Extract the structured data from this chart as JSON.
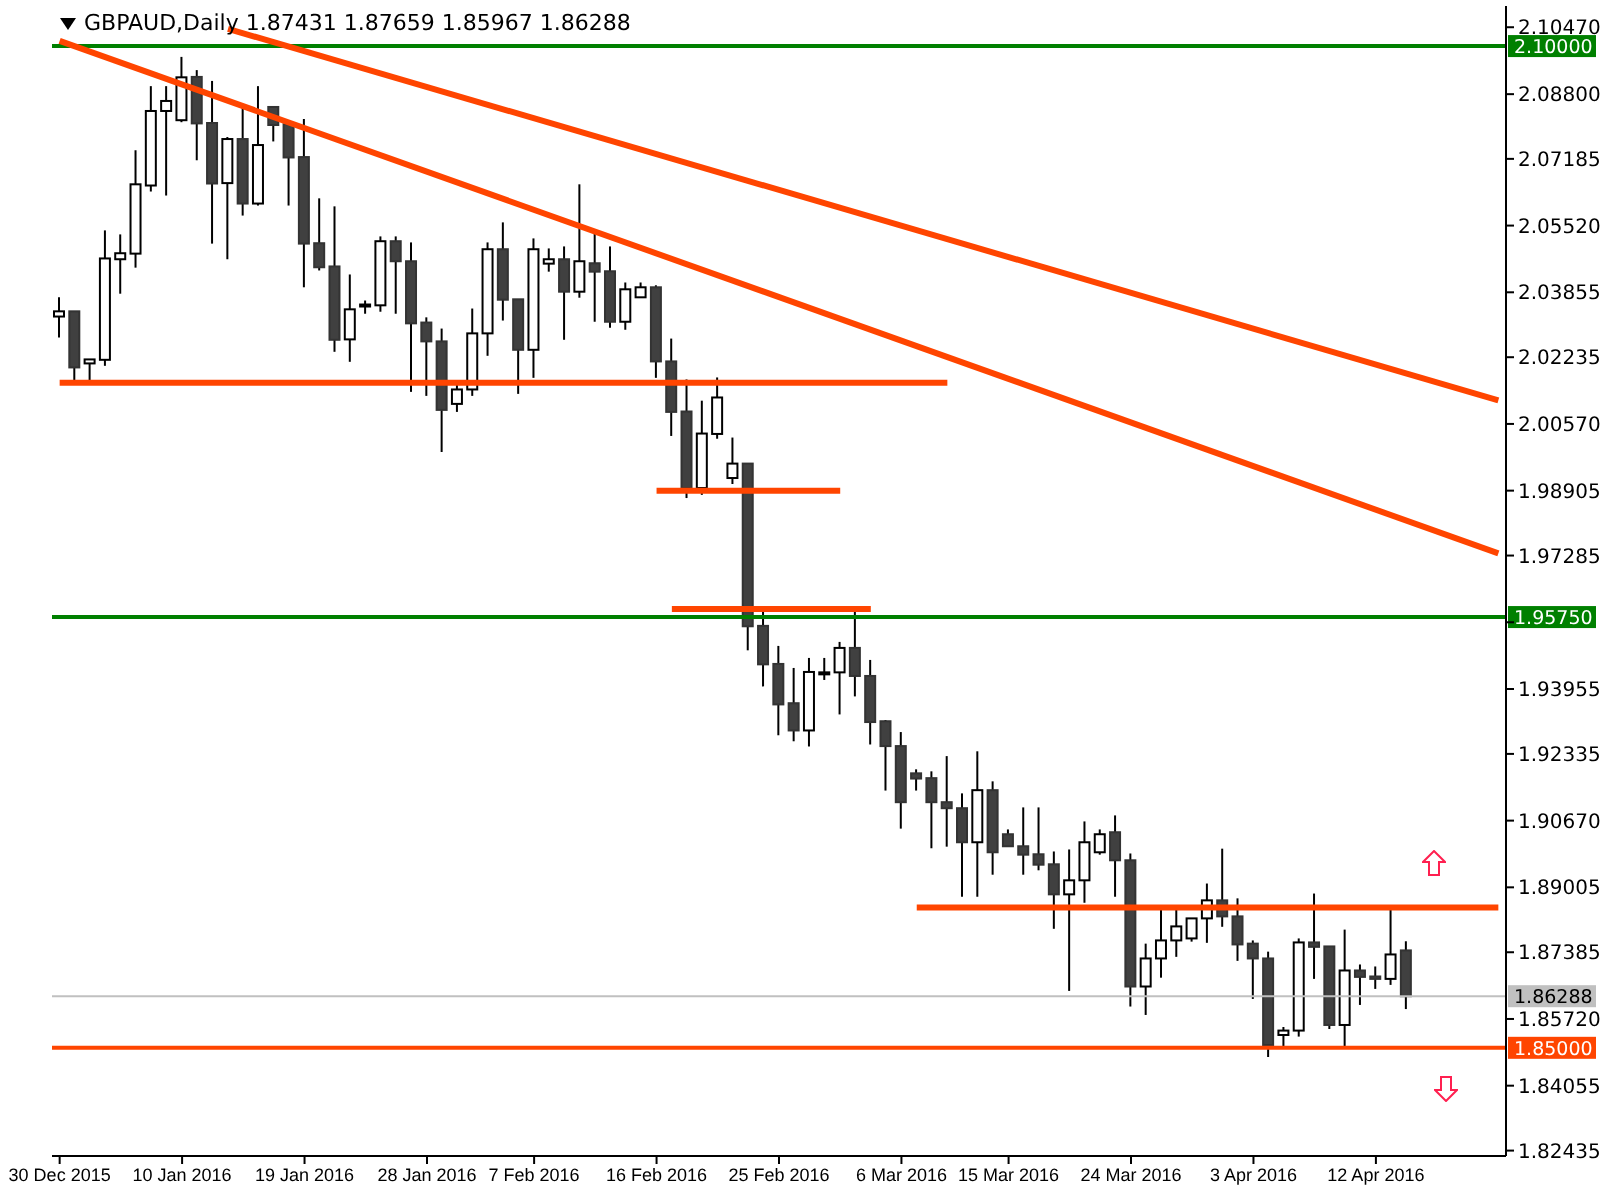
{
  "chart_data": {
    "type": "candlestick",
    "title": "GBPAUD,Daily  1.87431 1.87659 1.85967 1.86288",
    "categories": [
      "30 Dec 2015",
      null,
      null,
      null,
      null,
      null,
      null,
      null,
      "10 Jan 2016",
      null,
      null,
      null,
      null,
      null,
      null,
      null,
      "19 Jan 2016",
      null,
      null,
      null,
      null,
      null,
      null,
      null,
      "28 Jan 2016",
      null,
      null,
      null,
      null,
      null,
      null,
      "7 Feb 2016",
      null,
      null,
      null,
      null,
      null,
      null,
      null,
      "16 Feb 2016",
      null,
      null,
      null,
      null,
      null,
      null,
      null,
      "25 Feb 2016",
      null,
      null,
      null,
      null,
      null,
      null,
      null,
      "6 Mar 2016",
      null,
      null,
      null,
      null,
      null,
      null,
      "15 Mar 2016",
      null,
      null,
      null,
      null,
      null,
      null,
      null,
      "24 Mar 2016",
      null,
      null,
      null,
      null,
      null,
      null,
      null,
      "3 Apr 2016",
      null,
      null,
      null,
      null,
      null,
      null,
      null,
      "12 Apr 2016",
      null,
      null,
      null,
      null,
      null,
      null,
      null,
      null
    ],
    "ohlc": [
      [
        2.0325,
        2.0373,
        2.0273,
        2.0338
      ],
      [
        2.0338,
        2.0338,
        2.0162,
        2.0198
      ],
      [
        2.0208,
        2.0218,
        2.0165,
        2.0218
      ],
      [
        2.0217,
        2.054,
        2.0202,
        2.047
      ],
      [
        2.0468,
        2.053,
        2.0382,
        2.0483
      ],
      [
        2.0482,
        2.074,
        2.0447,
        2.0655
      ],
      [
        2.0652,
        2.09,
        2.0637,
        2.0838
      ],
      [
        2.0838,
        2.09,
        2.0627,
        2.0863
      ],
      [
        2.0815,
        2.0973,
        2.081,
        2.0922
      ],
      [
        2.0923,
        2.094,
        2.0715,
        2.0807
      ],
      [
        2.0808,
        2.0913,
        2.0507,
        2.0657
      ],
      [
        2.0658,
        2.0773,
        2.0468,
        2.0768
      ],
      [
        2.0768,
        2.0852,
        2.0577,
        2.0607
      ],
      [
        2.0607,
        2.09,
        2.0602,
        2.0753
      ],
      [
        2.0848,
        2.0848,
        2.0762,
        2.0803
      ],
      [
        2.0805,
        2.0815,
        2.0602,
        2.0722
      ],
      [
        2.0723,
        2.0818,
        2.0398,
        2.0507
      ],
      [
        2.0508,
        2.062,
        2.044,
        2.0448
      ],
      [
        2.045,
        2.06,
        2.0237,
        2.0267
      ],
      [
        2.0268,
        2.043,
        2.0212,
        2.0343
      ],
      [
        2.0353,
        2.0365,
        2.0332,
        2.0355
      ],
      [
        2.0353,
        2.0525,
        2.0337,
        2.0513
      ],
      [
        2.0513,
        2.0525,
        2.0332,
        2.0463
      ],
      [
        2.0463,
        2.051,
        2.0137,
        2.0308
      ],
      [
        2.031,
        2.0323,
        2.0127,
        2.0263
      ],
      [
        2.0263,
        2.0295,
        1.9987,
        2.0092
      ],
      [
        2.0107,
        2.0157,
        2.0087,
        2.0143
      ],
      [
        2.0143,
        2.0345,
        2.0127,
        2.0283
      ],
      [
        2.0283,
        2.051,
        2.0227,
        2.0493
      ],
      [
        2.0493,
        2.056,
        2.0315,
        2.0367
      ],
      [
        2.0368,
        2.0368,
        2.0132,
        2.0242
      ],
      [
        2.0242,
        2.052,
        2.0172,
        2.0493
      ],
      [
        2.0457,
        2.0495,
        2.0437,
        2.0468
      ],
      [
        2.0468,
        2.05,
        2.0267,
        2.0387
      ],
      [
        2.0387,
        2.0655,
        2.0372,
        2.0463
      ],
      [
        2.0458,
        2.054,
        2.0312,
        2.0437
      ],
      [
        2.0438,
        2.05,
        2.0297,
        2.0312
      ],
      [
        2.0312,
        2.041,
        2.0292,
        2.0393
      ],
      [
        2.0373,
        2.041,
        2.0373,
        2.0398
      ],
      [
        2.0398,
        2.0403,
        2.0172,
        2.0213
      ],
      [
        2.0213,
        2.027,
        2.0027,
        2.0087
      ],
      [
        2.0088,
        2.0168,
        1.9872,
        1.9897
      ],
      [
        1.9897,
        2.0115,
        1.988,
        2.0033
      ],
      [
        2.0032,
        2.0173,
        2.002,
        2.0123
      ],
      [
        1.9922,
        2.0023,
        1.9907,
        1.9958
      ],
      [
        1.9958,
        1.9958,
        1.9492,
        1.9552
      ],
      [
        1.9553,
        1.9598,
        1.9402,
        1.9457
      ],
      [
        1.9458,
        1.9503,
        1.928,
        1.9357
      ],
      [
        1.936,
        1.9448,
        1.9265,
        1.9292
      ],
      [
        1.9292,
        1.9473,
        1.9252,
        1.9438
      ],
      [
        1.9435,
        1.9473,
        1.9418,
        1.9437
      ],
      [
        1.9437,
        1.9513,
        1.9332,
        1.9498
      ],
      [
        1.9498,
        1.9595,
        1.9377,
        1.9428
      ],
      [
        1.9428,
        1.9468,
        1.9257,
        1.9313
      ],
      [
        1.9315,
        1.9318,
        1.9142,
        1.9253
      ],
      [
        1.9253,
        1.9288,
        1.9047,
        1.9113
      ],
      [
        1.9185,
        1.9195,
        1.9142,
        1.9172
      ],
      [
        1.9173,
        1.919,
        1.8998,
        1.9113
      ],
      [
        1.9113,
        1.9228,
        1.9002,
        1.9098
      ],
      [
        1.9098,
        1.9135,
        1.8877,
        1.9013
      ],
      [
        1.9013,
        1.924,
        1.8877,
        1.9143
      ],
      [
        1.9143,
        1.9165,
        1.8932,
        1.8988
      ],
      [
        1.9033,
        1.9045,
        1.9003,
        1.9003
      ],
      [
        1.9003,
        1.91,
        1.8932,
        1.8982
      ],
      [
        1.8983,
        1.91,
        1.8943,
        1.8957
      ],
      [
        1.8958,
        1.899,
        1.8797,
        1.8883
      ],
      [
        1.8883,
        1.8995,
        1.8642,
        1.8918
      ],
      [
        1.8918,
        1.9065,
        1.8862,
        1.9013
      ],
      [
        1.8988,
        1.9045,
        1.8982,
        1.9033
      ],
      [
        1.9038,
        1.908,
        1.8877,
        1.8968
      ],
      [
        1.8968,
        1.8985,
        1.8603,
        1.8653
      ],
      [
        1.8653,
        1.876,
        1.8582,
        1.8723
      ],
      [
        1.8723,
        1.8845,
        1.8675,
        1.8768
      ],
      [
        1.8768,
        1.8845,
        1.8727,
        1.8803
      ],
      [
        1.8773,
        1.8823,
        1.8765,
        1.8823
      ],
      [
        1.8823,
        1.891,
        1.8762,
        1.8868
      ],
      [
        1.8868,
        1.8997,
        1.8802,
        1.8828
      ],
      [
        1.8828,
        1.8873,
        1.8717,
        1.8758
      ],
      [
        1.876,
        1.8768,
        1.8622,
        1.8723
      ],
      [
        1.8723,
        1.874,
        1.8477,
        1.8507
      ],
      [
        1.8532,
        1.8552,
        1.8497,
        1.8543
      ],
      [
        1.8543,
        1.8773,
        1.8528,
        1.8763
      ],
      [
        1.8763,
        1.8885,
        1.8672,
        1.8752
      ],
      [
        1.8753,
        1.8753,
        1.8547,
        1.8557
      ],
      [
        1.8557,
        1.8795,
        1.8497,
        1.8693
      ],
      [
        1.8693,
        1.8708,
        1.8607,
        1.8677
      ],
      [
        1.8678,
        1.8703,
        1.8647,
        1.8672
      ],
      [
        1.8672,
        1.885,
        1.8657,
        1.8733
      ],
      [
        1.87431,
        1.87659,
        1.85967,
        1.86288
      ],
      null,
      null,
      null,
      null,
      null,
      null
    ],
    "series": [
      {
        "type": "line",
        "color": "#ff4500",
        "values": [
          null,
          null,
          null,
          null,
          null,
          null,
          null,
          null,
          null,
          null,
          null,
          2.1043,
          null,
          null,
          null,
          null,
          null,
          null,
          null,
          null,
          null,
          null,
          null,
          null,
          null,
          null,
          null,
          null,
          null,
          null,
          null,
          null,
          null,
          null,
          null,
          null,
          null,
          null,
          null,
          null,
          null,
          null,
          null,
          null,
          null,
          null,
          null,
          null,
          null,
          null,
          null,
          null,
          null,
          null,
          null,
          null,
          null,
          null,
          null,
          null,
          null,
          null,
          null,
          null,
          null,
          null,
          null,
          null,
          null,
          null,
          null,
          null,
          null,
          null,
          null,
          null,
          null,
          null,
          null,
          null,
          null,
          null,
          null,
          null,
          null,
          null,
          null,
          null,
          null,
          null,
          null,
          null,
          null,
          null,
          2.0116
        ]
      },
      {
        "type": "line",
        "color": "#ff4500",
        "values": [
          2.1013,
          null,
          null,
          null,
          null,
          null,
          null,
          null,
          null,
          null,
          null,
          null,
          null,
          null,
          null,
          null,
          null,
          null,
          null,
          null,
          null,
          null,
          null,
          null,
          null,
          null,
          null,
          null,
          null,
          null,
          null,
          null,
          null,
          null,
          null,
          null,
          null,
          null,
          null,
          null,
          null,
          null,
          null,
          null,
          null,
          null,
          null,
          null,
          null,
          null,
          null,
          null,
          null,
          null,
          null,
          null,
          null,
          null,
          null,
          null,
          null,
          null,
          null,
          null,
          null,
          null,
          null,
          null,
          null,
          null,
          null,
          null,
          null,
          null,
          null,
          null,
          null,
          null,
          null,
          null,
          null,
          null,
          null,
          null,
          null,
          null,
          null,
          null,
          null,
          null,
          null,
          null,
          null,
          null,
          1.9734
        ]
      },
      {
        "type": "line",
        "color": "#ff4500",
        "values": [
          2.016,
          null,
          null,
          null,
          null,
          null,
          null,
          null,
          null,
          null,
          null,
          null,
          null,
          null,
          null,
          null,
          null,
          null,
          null,
          null,
          null,
          null,
          null,
          null,
          null,
          null,
          null,
          null,
          null,
          null,
          null,
          null,
          null,
          null,
          null,
          null,
          null,
          null,
          null,
          null,
          null,
          null,
          null,
          null,
          null,
          null,
          null,
          null,
          null,
          null,
          null,
          null,
          null,
          null,
          null,
          null,
          null,
          null,
          2.016,
          null,
          null,
          null,
          null,
          null,
          null,
          null,
          null,
          null,
          null,
          null,
          null,
          null,
          null,
          null,
          null,
          null,
          null,
          null,
          null,
          null,
          null,
          null,
          null,
          null,
          null,
          null,
          null,
          null,
          null,
          null,
          null,
          null,
          null,
          null,
          null
        ]
      },
      {
        "type": "line",
        "color": "#ff4500",
        "values": [
          null,
          null,
          null,
          null,
          null,
          null,
          null,
          null,
          null,
          null,
          null,
          null,
          null,
          null,
          null,
          null,
          null,
          null,
          null,
          null,
          null,
          null,
          null,
          null,
          null,
          null,
          null,
          null,
          null,
          null,
          null,
          null,
          null,
          null,
          null,
          null,
          null,
          null,
          null,
          1.989,
          null,
          null,
          null,
          null,
          null,
          null,
          null,
          null,
          null,
          null,
          null,
          1.989,
          null,
          null,
          null,
          null,
          null,
          null,
          null,
          null,
          null,
          null,
          null,
          null,
          null,
          null,
          null,
          null,
          null,
          null,
          null,
          null,
          null,
          null,
          null,
          null,
          null,
          null,
          null,
          null,
          null,
          null,
          null,
          null,
          null,
          null,
          null,
          null,
          null,
          null,
          null,
          null,
          null,
          null,
          null
        ]
      },
      {
        "type": "line",
        "color": "#ff4500",
        "values": [
          null,
          null,
          null,
          null,
          null,
          null,
          null,
          null,
          null,
          null,
          null,
          null,
          null,
          null,
          null,
          null,
          null,
          null,
          null,
          null,
          null,
          null,
          null,
          null,
          null,
          null,
          null,
          null,
          null,
          null,
          null,
          null,
          null,
          null,
          null,
          null,
          null,
          null,
          null,
          null,
          1.9595,
          null,
          null,
          null,
          null,
          null,
          null,
          null,
          null,
          null,
          null,
          null,
          null,
          1.9595,
          null,
          null,
          null,
          null,
          null,
          null,
          null,
          null,
          null,
          null,
          null,
          null,
          null,
          null,
          null,
          null,
          null,
          null,
          null,
          null,
          null,
          null,
          null,
          null,
          null,
          null,
          null,
          null,
          null,
          null,
          null,
          null,
          null,
          null,
          null,
          null,
          null,
          null,
          null,
          null,
          null
        ]
      },
      {
        "type": "line",
        "color": "#ff4500",
        "values": [
          null,
          null,
          null,
          null,
          null,
          null,
          null,
          null,
          null,
          null,
          null,
          null,
          null,
          null,
          null,
          null,
          null,
          null,
          null,
          null,
          null,
          null,
          null,
          null,
          null,
          null,
          null,
          null,
          null,
          null,
          null,
          null,
          null,
          null,
          null,
          null,
          null,
          null,
          null,
          null,
          null,
          null,
          null,
          null,
          null,
          null,
          null,
          null,
          null,
          null,
          null,
          null,
          null,
          null,
          null,
          null,
          1.885,
          null,
          null,
          null,
          null,
          null,
          null,
          null,
          null,
          null,
          null,
          null,
          null,
          null,
          null,
          null,
          null,
          null,
          null,
          null,
          null,
          null,
          null,
          null,
          null,
          null,
          null,
          null,
          null,
          null,
          null,
          null,
          null,
          null,
          null,
          null,
          null,
          null,
          1.885
        ]
      }
    ],
    "ref_lines": [
      {
        "axis": "y",
        "value": 2.1,
        "label": "2.10000",
        "color": "#008000"
      },
      {
        "axis": "y",
        "value": 1.9575,
        "label": "1.95750",
        "color": "#008000"
      },
      {
        "axis": "y",
        "value": 1.85,
        "label": "1.85000",
        "color": "#ff4500"
      },
      {
        "axis": "y",
        "value": 1.86288,
        "label": "1.86288",
        "color": "#c0c0c0"
      }
    ],
    "ylim": [
      1.823,
      2.11
    ],
    "yticks": [
      {
        "value": 2.1047,
        "label": "2.10470"
      },
      {
        "value": 2.088,
        "label": "2.08800"
      },
      {
        "value": 2.07185,
        "label": "2.07185"
      },
      {
        "value": 2.0552,
        "label": "2.05520"
      },
      {
        "value": 2.03855,
        "label": "2.03855"
      },
      {
        "value": 2.02235,
        "label": "2.02235"
      },
      {
        "value": 2.0057,
        "label": "2.00570"
      },
      {
        "value": 1.98905,
        "label": "1.98905"
      },
      {
        "value": 1.97285,
        "label": "1.97285"
      },
      {
        "value": 1.9562,
        "label": null
      },
      {
        "value": 1.93955,
        "label": "1.93955"
      },
      {
        "value": 1.92335,
        "label": "1.92335"
      },
      {
        "value": 1.9067,
        "label": "1.90670"
      },
      {
        "value": 1.89005,
        "label": "1.89005"
      },
      {
        "value": 1.87385,
        "label": "1.87385"
      },
      {
        "value": 1.8572,
        "label": "1.85720"
      },
      {
        "value": 1.84055,
        "label": "1.84055"
      },
      {
        "value": 1.82435,
        "label": "1.82435"
      }
    ],
    "tick_labels": true
  }
}
